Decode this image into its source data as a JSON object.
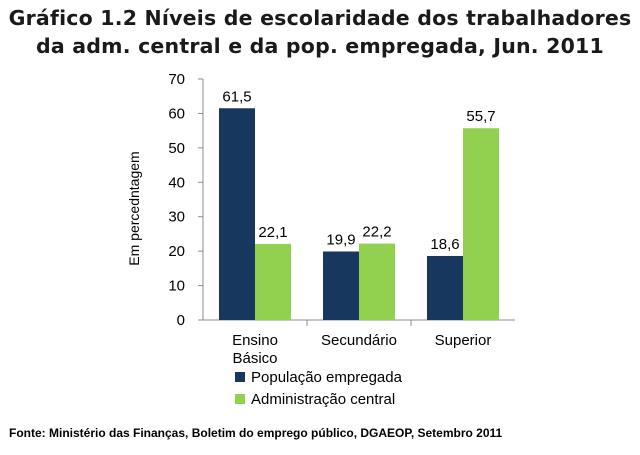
{
  "title_line1": "Gráfico 1.2 Níveis de escolaridade dos trabalhadores",
  "title_line2": "da adm. central e da pop. empregada, Jun. 2011",
  "source": "Fonte: Ministério das Finanças, Boletim do emprego público, DGAEOP, Setembro 2011",
  "chart_data": {
    "type": "bar",
    "title": "Gráfico 1.2 Níveis de escolaridade dos trabalhadores da adm. central e da pop. empregada, Jun. 2011",
    "xlabel": "",
    "ylabel": "Em percedntagem",
    "ylim": [
      0,
      70
    ],
    "yticks": [
      0,
      10,
      20,
      30,
      40,
      50,
      60,
      70
    ],
    "ytick_labels": [
      "0",
      "10",
      "20",
      "30",
      "40",
      "50",
      "60",
      "70"
    ],
    "categories": [
      [
        "Ensino",
        "Básico"
      ],
      [
        "Secundário"
      ],
      [
        "Superior"
      ]
    ],
    "series": [
      {
        "name": "População empregada",
        "color": "#17375e",
        "values": [
          61.5,
          19.9,
          18.6
        ],
        "labels": [
          "61,5",
          "19,9",
          "18,6"
        ]
      },
      {
        "name": "Administração central",
        "color": "#92d050",
        "values": [
          22.1,
          22.2,
          55.7
        ],
        "labels": [
          "22,1",
          "22,2",
          "55,7"
        ]
      }
    ],
    "grid": false,
    "legend_position": "bottom"
  }
}
